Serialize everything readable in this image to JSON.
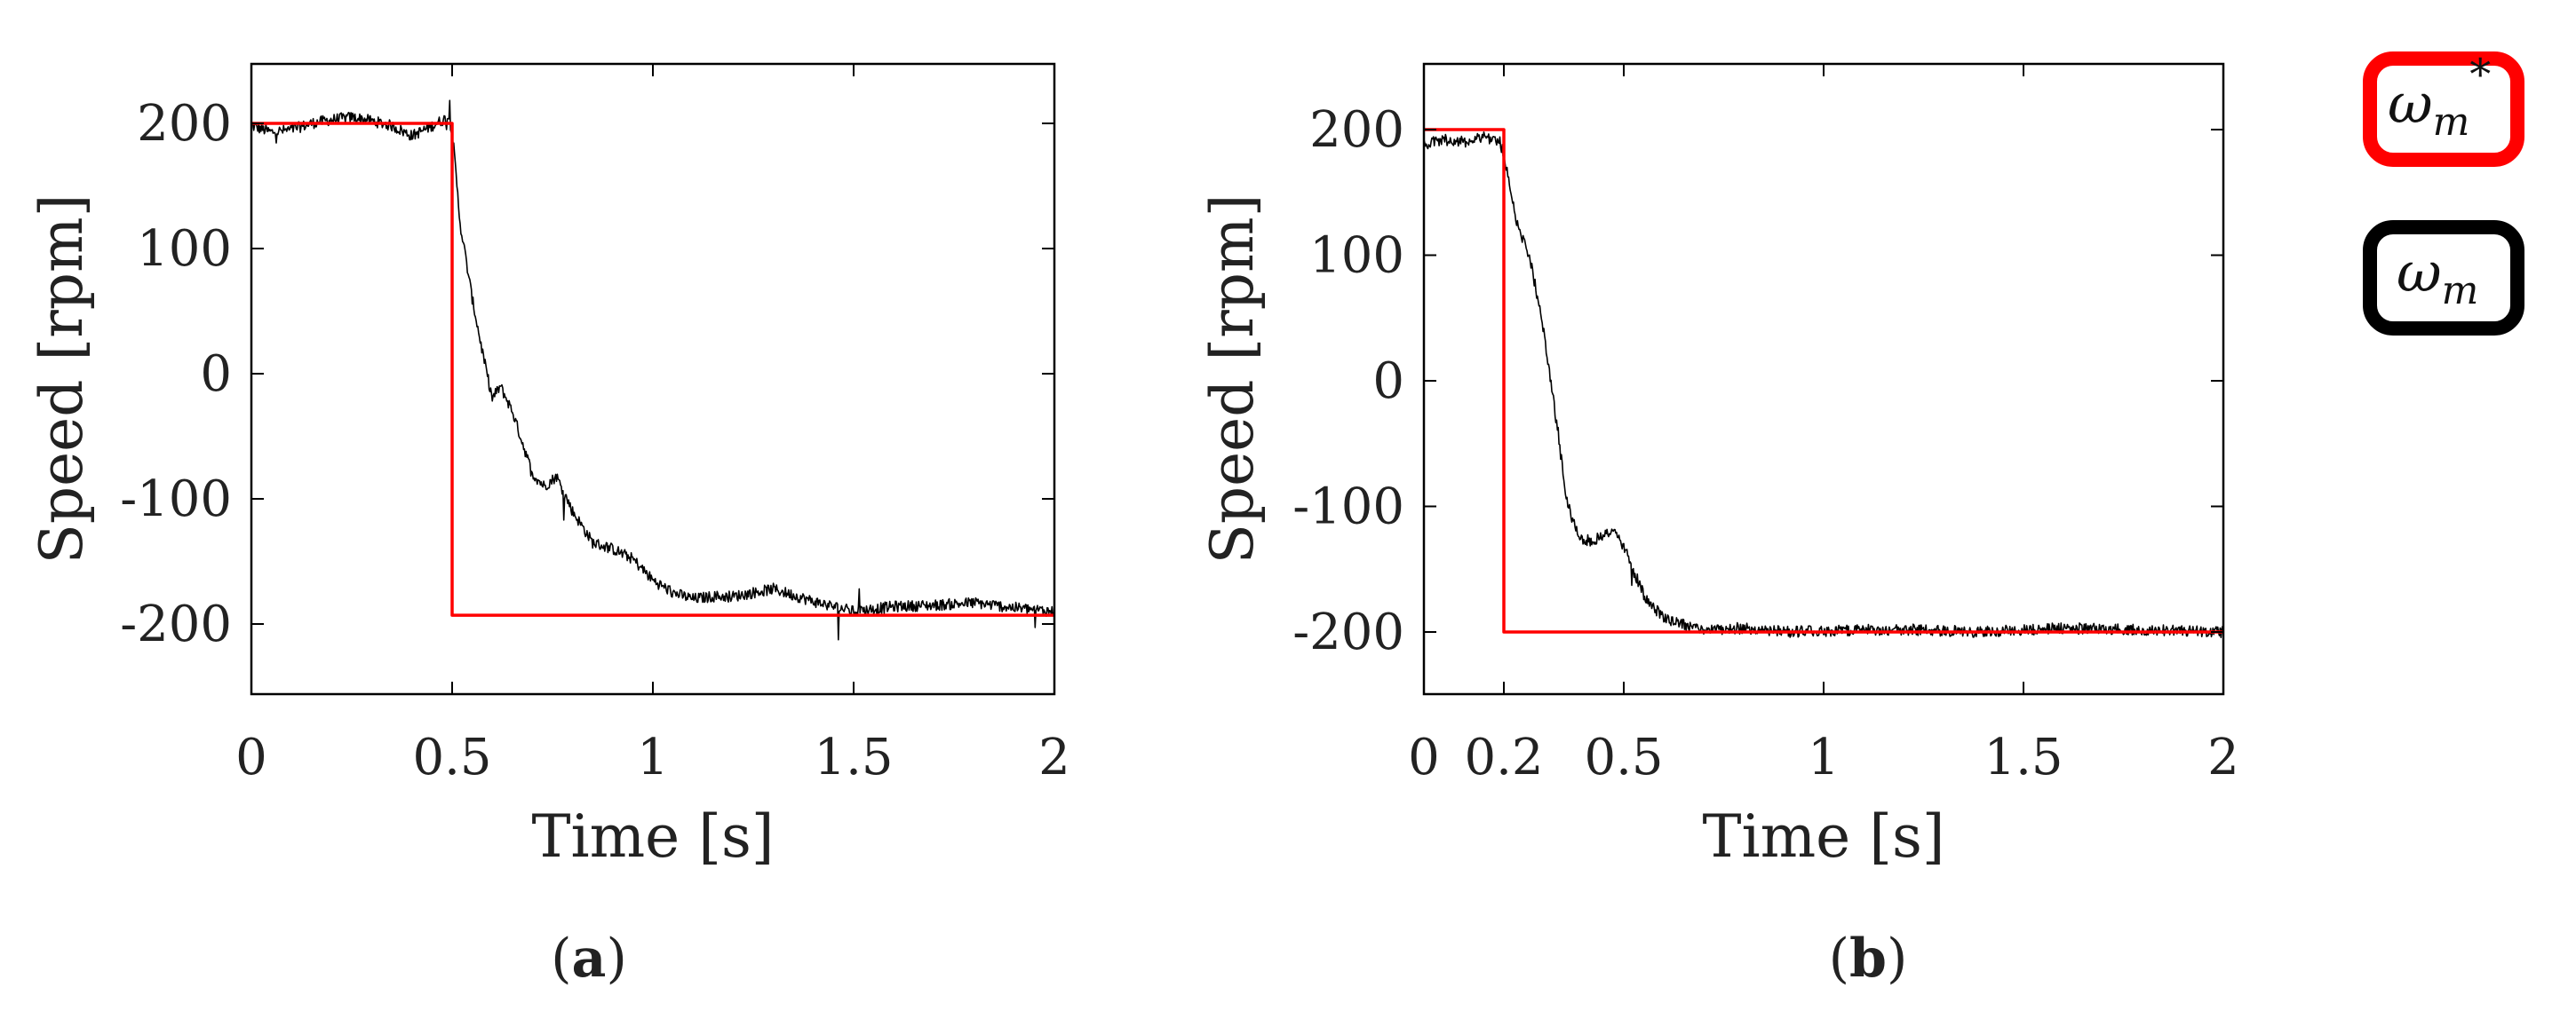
{
  "chart_data": [
    {
      "type": "line",
      "panel": "a",
      "caption_letter": "a",
      "xlabel": "Time [s]",
      "ylabel": "Speed [rpm]",
      "xlim": [
        0,
        2
      ],
      "ylim": [
        -250,
        250
      ],
      "xticks": [
        0,
        0.5,
        1,
        1.5,
        2
      ],
      "xtick_labels": [
        "0",
        "0.5",
        "1",
        "1.5",
        "2"
      ],
      "yticks": [
        200,
        100,
        0,
        -100,
        -200
      ],
      "ytick_labels": [
        "200",
        "100",
        "0",
        "-100",
        "-200"
      ],
      "grid": false,
      "series": [
        {
          "name": "ω_m*",
          "color": "#ff0000",
          "x": [
            0,
            0.5,
            0.5,
            2
          ],
          "y": [
            200,
            200,
            -193,
            -193
          ]
        },
        {
          "name": "ω_m",
          "color": "#000000",
          "x": [
            0,
            0.05,
            0.1,
            0.15,
            0.2,
            0.25,
            0.3,
            0.35,
            0.4,
            0.45,
            0.49,
            0.5,
            0.52,
            0.55,
            0.58,
            0.6,
            0.62,
            0.65,
            0.68,
            0.7,
            0.73,
            0.76,
            0.8,
            0.85,
            0.9,
            0.95,
            1.0,
            1.05,
            1.1,
            1.15,
            1.2,
            1.3,
            1.4,
            1.5,
            1.6,
            1.7,
            1.8,
            1.9,
            2.0
          ],
          "y": [
            198,
            193,
            195,
            200,
            203,
            205,
            202,
            198,
            190,
            198,
            205,
            195,
            120,
            60,
            10,
            -20,
            -10,
            -30,
            -60,
            -80,
            -90,
            -82,
            -110,
            -135,
            -140,
            -148,
            -165,
            -175,
            -180,
            -178,
            -178,
            -172,
            -182,
            -190,
            -186,
            -185,
            -183,
            -187,
            -190
          ]
        }
      ]
    },
    {
      "type": "line",
      "panel": "b",
      "caption_letter": "b",
      "xlabel": "Time [s]",
      "ylabel": "Speed [rpm]",
      "xlim": [
        0,
        2
      ],
      "ylim": [
        -250,
        250
      ],
      "xticks": [
        0,
        0.2,
        0.5,
        1,
        1.5,
        2
      ],
      "xtick_labels": [
        "0",
        "0.2",
        "0.5",
        "1",
        "1.5",
        "2"
      ],
      "yticks": [
        200,
        100,
        0,
        -100,
        -200
      ],
      "ytick_labels": [
        "200",
        "100",
        "0",
        "-100",
        "-200"
      ],
      "grid": false,
      "series": [
        {
          "name": "ω_m*",
          "color": "#ff0000",
          "x": [
            0,
            0.2,
            0.2,
            2
          ],
          "y": [
            200,
            200,
            -200,
            -200
          ]
        },
        {
          "name": "ω_m",
          "color": "#000000",
          "x": [
            0,
            0.05,
            0.1,
            0.15,
            0.19,
            0.2,
            0.23,
            0.27,
            0.3,
            0.33,
            0.36,
            0.39,
            0.42,
            0.45,
            0.48,
            0.51,
            0.55,
            0.6,
            0.7,
            0.8,
            0.9,
            1.0,
            1.2,
            1.4,
            1.6,
            1.8,
            2.0
          ],
          "y": [
            188,
            192,
            190,
            195,
            190,
            180,
            130,
            90,
            40,
            -30,
            -100,
            -125,
            -128,
            -122,
            -120,
            -140,
            -170,
            -190,
            -198,
            -197,
            -200,
            -199,
            -198,
            -200,
            -197,
            -198,
            -200
          ]
        }
      ]
    }
  ],
  "legend": {
    "reference": {
      "symbol": "ω",
      "subscript": "m",
      "superscript": "*",
      "border_color": "#ff0000"
    },
    "measured": {
      "symbol": "ω",
      "subscript": "m",
      "border_color": "#000000"
    }
  }
}
